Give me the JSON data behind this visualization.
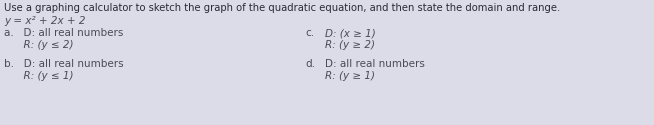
{
  "title": "Use a graphing calculator to sketch the graph of the quadratic equation, and then state the domain and range.",
  "equation": "y = x² + 2x + 2",
  "option_a_d": "a.   D: all real numbers",
  "option_a_r": "      R: (y ≤ 2)",
  "option_b_d": "b.   D: all real numbers",
  "option_b_r": "      R: (y ≤ 1)",
  "option_c_label": "c.",
  "option_c_d": "D: (x ≥ 1)",
  "option_c_r": "R: (y ≥ 2)",
  "option_d_label": "d.",
  "option_d_d": "D: all real numbers",
  "option_d_r": "R: (y ≥ 1)",
  "bg_color": "#dcdce8",
  "text_color": "#4a4a5a",
  "title_color": "#2a2a3a",
  "font_size_title": 7.2,
  "font_size_eq": 7.5,
  "font_size_options": 7.5
}
